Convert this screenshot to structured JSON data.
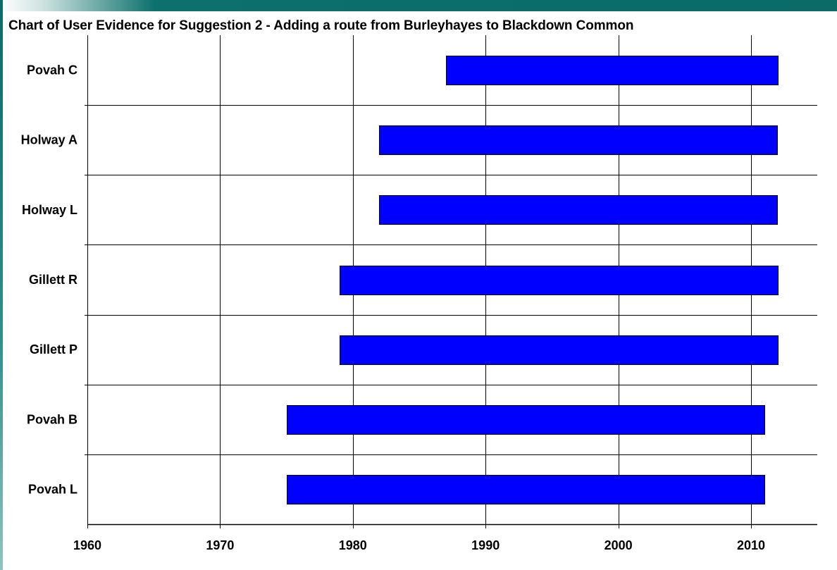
{
  "title": "Chart of  User Evidence for Suggestion 2  - Adding a route from Burleyhayes to Blackdown Common",
  "chart_data": {
    "type": "bar",
    "orientation": "horizontal",
    "title": "Chart of  User Evidence for Suggestion 2  - Adding a route from Burleyhayes to Blackdown Common",
    "xlabel": "",
    "ylabel": "",
    "categories": [
      "Povah C",
      "Holway A",
      "Holway L",
      "Gillett R",
      "Gillett P",
      "Povah B",
      "Povah L"
    ],
    "ranges": [
      {
        "name": "Povah C",
        "start": 1987,
        "end": 2012
      },
      {
        "name": "Holway A",
        "start": 1982,
        "end": 2012
      },
      {
        "name": "Holway L",
        "start": 1982,
        "end": 2012
      },
      {
        "name": "Gillett R",
        "start": 1979,
        "end": 2012
      },
      {
        "name": "Gillett P",
        "start": 1979,
        "end": 2012
      },
      {
        "name": "Povah B",
        "start": 1975,
        "end": 2011
      },
      {
        "name": "Povah L",
        "start": 1975,
        "end": 2011
      }
    ],
    "xticks": [
      "1960",
      "1970",
      "1980",
      "1990",
      "2000",
      "2010"
    ],
    "xlim": [
      1960,
      2015
    ],
    "grid": true,
    "bar_color": "#0000ff",
    "bar_border_color": "#000000",
    "gridline_color": "#000000"
  }
}
